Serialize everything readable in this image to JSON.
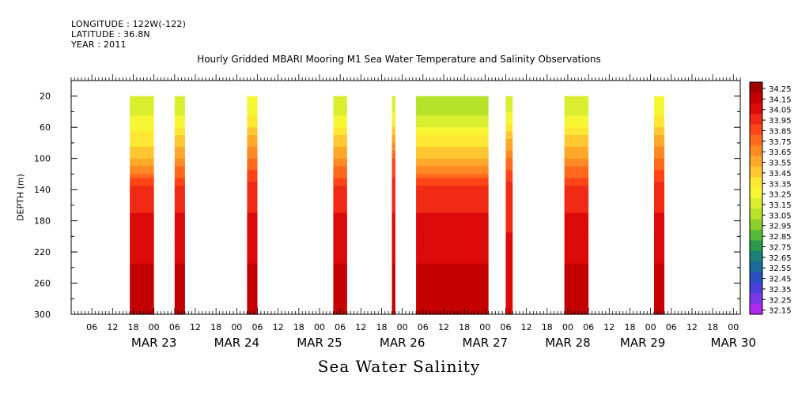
{
  "header": {
    "longitude": "LONGITUDE : 122W(-122)",
    "latitude": "LATITUDE : 36.8N",
    "year": "YEAR : 2011"
  },
  "chart_data": {
    "type": "heatmap",
    "title": "Hourly Gridded MBARI Mooring M1 Sea Water Temperature and Salinity Observations",
    "xlabel": "Sea Water Salinity",
    "ylabel": "DEPTH (m)",
    "ylim": [
      300,
      0
    ],
    "y_ticks": [
      20,
      60,
      100,
      140,
      180,
      220,
      260,
      300
    ],
    "x_range_hours": [
      "MAR 22 00",
      "MAR 30 02"
    ],
    "x_hour_ticks": [
      "06",
      "12",
      "18",
      "00",
      "06",
      "12",
      "18",
      "00",
      "06",
      "12",
      "18",
      "00",
      "06",
      "12",
      "18",
      "00",
      "06",
      "12",
      "18",
      "00",
      "06",
      "12",
      "18",
      "00",
      "06",
      "12",
      "18",
      "00",
      "06",
      "12",
      "18",
      "00"
    ],
    "x_day_labels": [
      "MAR 23",
      "MAR 24",
      "MAR 25",
      "MAR 26",
      "MAR 27",
      "MAR 28",
      "MAR 29",
      "MAR 30"
    ],
    "colorbar": {
      "levels": [
        "34.25",
        "34.15",
        "34.05",
        "33.95",
        "33.85",
        "33.75",
        "33.65",
        "33.55",
        "33.45",
        "33.35",
        "33.25",
        "33.15",
        "33.05",
        "32.95",
        "32.85",
        "32.75",
        "32.65",
        "32.55",
        "32.45",
        "32.35",
        "32.25",
        "32.15"
      ],
      "colors": [
        "#a00000",
        "#c40000",
        "#dc0a0a",
        "#f02a14",
        "#ff4418",
        "#ff6a1e",
        "#ff8a24",
        "#ffa82a",
        "#ffc830",
        "#ffe834",
        "#f6f632",
        "#d8ee2e",
        "#b6e22a",
        "#8ece2a",
        "#52bc3a",
        "#2a9a4a",
        "#1a807a",
        "#1a6a9c",
        "#2a50c0",
        "#4a40d8",
        "#7a38e6",
        "#b028ee"
      ]
    },
    "data_segments": [
      {
        "start": "MAR 22 17",
        "end": "MAR 23 00",
        "surface": 33.1,
        "s100": 33.5,
        "deep": 34.2
      },
      {
        "start": "MAR 23 06",
        "end": "MAR 23 09",
        "surface": 33.1,
        "s100": 33.6,
        "deep": 34.2
      },
      {
        "start": "MAR 24 03",
        "end": "MAR 24 06",
        "surface": 33.2,
        "s100": 33.7,
        "deep": 34.2
      },
      {
        "start": "MAR 25 04",
        "end": "MAR 25 08",
        "surface": 33.1,
        "s100": 33.6,
        "deep": 34.2
      },
      {
        "start": "MAR 25 21",
        "end": "MAR 25 22",
        "surface": 33.1,
        "s100": 33.8,
        "deep": 34.2
      },
      {
        "start": "MAR 26 04",
        "end": "MAR 27 01",
        "surface": 33.0,
        "s100": 33.5,
        "deep": 34.2
      },
      {
        "start": "MAR 27 06",
        "end": "MAR 27 08",
        "surface": 33.1,
        "s100": 33.7,
        "deep": 34.1
      },
      {
        "start": "MAR 27 23",
        "end": "MAR 28 06",
        "surface": 33.1,
        "s100": 33.6,
        "deep": 34.2
      },
      {
        "start": "MAR 29 01",
        "end": "MAR 29 04",
        "surface": 33.2,
        "s100": 33.7,
        "deep": 34.2
      }
    ]
  }
}
